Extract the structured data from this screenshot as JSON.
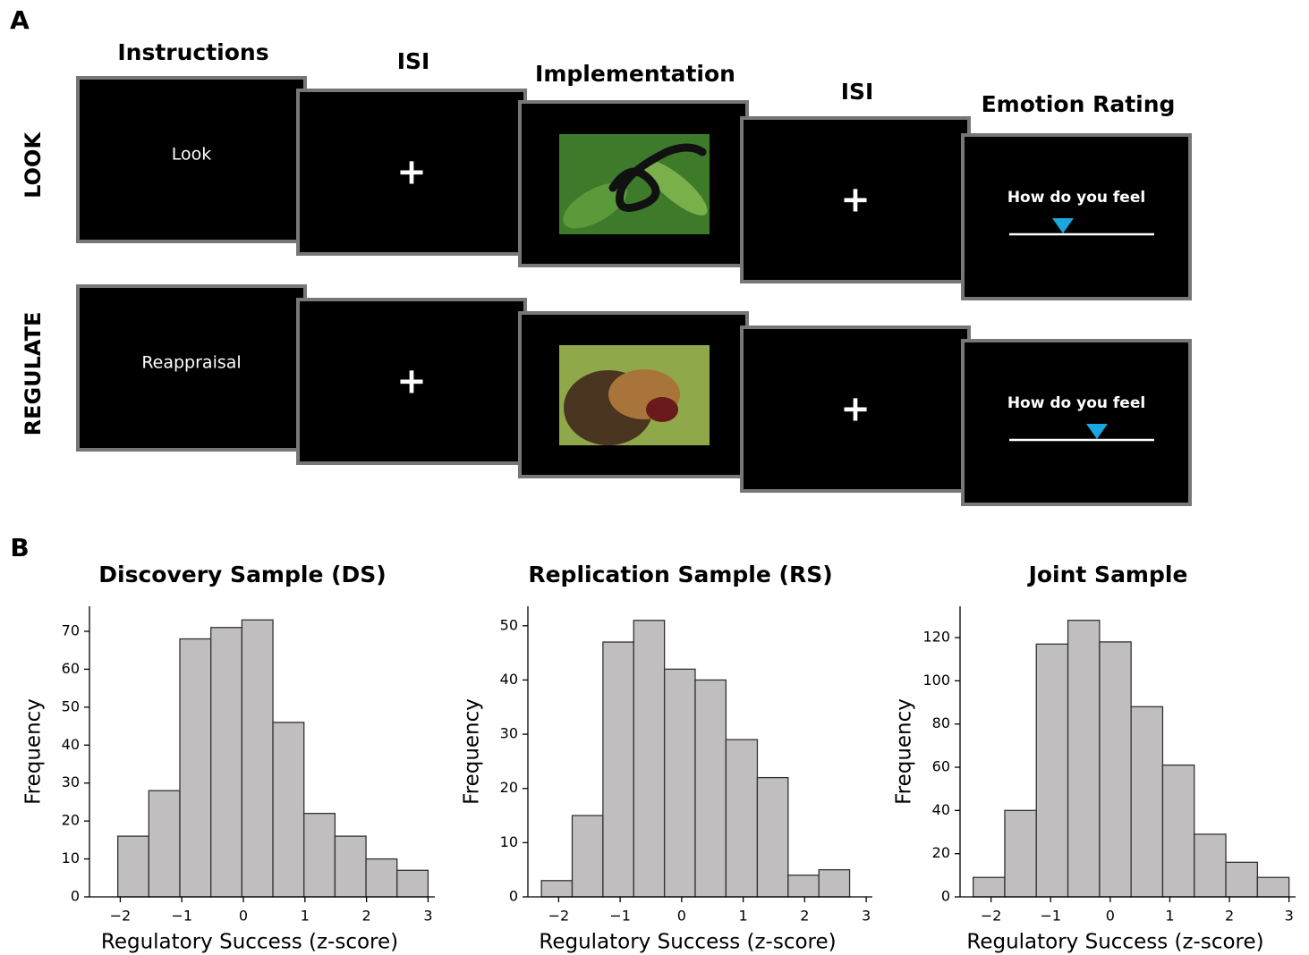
{
  "panel_a": {
    "label": "A",
    "columns": [
      "Instructions",
      "ISI",
      "Implementation",
      "ISI",
      "Emotion Rating"
    ],
    "rows": [
      {
        "label": "LOOK",
        "instruction": "Look",
        "fixation_1": "+",
        "fixation_2": "+",
        "rating_prompt": "How do you feel"
      },
      {
        "label": "REGULATE",
        "instruction": "Reappraisal",
        "fixation_1": "+",
        "fixation_2": "+",
        "rating_prompt": "How do you feel"
      }
    ]
  },
  "panel_b": {
    "label": "B"
  },
  "chart_data": [
    {
      "type": "histogram",
      "title": "Discovery Sample (DS)",
      "xlabel": "Regulatory Success (z-score)",
      "ylabel": "Frequency",
      "bins": [
        -2.04,
        -1.536,
        -1.032,
        -0.528,
        -0.024,
        0.48,
        0.984,
        1.488,
        1.992,
        2.496,
        3.0
      ],
      "values": [
        16,
        28,
        68,
        71,
        73,
        46,
        22,
        16,
        10,
        7
      ],
      "color": "#c0bebf",
      "edgecolor": "#333333",
      "xlim": [
        -2.5,
        3.11
      ],
      "ylim": [
        0,
        76.6
      ],
      "xticks": [
        {
          "value": -2,
          "label": "−2"
        },
        {
          "value": -1,
          "label": "−1"
        },
        0,
        1,
        2,
        3
      ],
      "yticks": [
        0,
        10,
        20,
        30,
        40,
        50,
        60,
        70
      ]
    },
    {
      "type": "histogram",
      "title": "Replication Sample (RS)",
      "xlabel": "Regulatory Success (z-score)",
      "ylabel": "Frequency",
      "bins": [
        -2.28,
        -1.78,
        -1.28,
        -0.78,
        -0.28,
        0.22,
        0.72,
        1.23,
        1.73,
        2.23,
        2.73
      ],
      "values": [
        3,
        15,
        47,
        51,
        42,
        40,
        29,
        22,
        4,
        5
      ],
      "color": "#c0bebf",
      "edgecolor": "#333333",
      "xlim": [
        -2.5,
        3.1
      ],
      "ylim": [
        0,
        53.6
      ],
      "xticks": [
        {
          "value": -2,
          "label": "−2"
        },
        {
          "value": -1,
          "label": "−1"
        },
        0,
        1,
        2,
        3
      ],
      "yticks": [
        0,
        10,
        20,
        30,
        40,
        50
      ]
    },
    {
      "type": "histogram",
      "title": "Joint Sample",
      "xlabel": "Regulatory Success (z-score)",
      "ylabel": "Frequency",
      "bins": [
        -2.3,
        -1.77,
        -1.24,
        -0.71,
        -0.18,
        0.35,
        0.88,
        1.41,
        1.94,
        2.47,
        3.0
      ],
      "values": [
        9,
        40,
        117,
        128,
        118,
        88,
        61,
        29,
        16,
        9
      ],
      "color": "#c0bebf",
      "edgecolor": "#333333",
      "xlim": [
        -2.52,
        3.11
      ],
      "ylim": [
        0,
        134.5
      ],
      "xticks": [
        {
          "value": -2,
          "label": "−2"
        },
        {
          "value": -1,
          "label": "−1"
        },
        0,
        1,
        2,
        3
      ],
      "yticks": [
        0,
        20,
        40,
        60,
        80,
        100,
        120
      ]
    }
  ]
}
